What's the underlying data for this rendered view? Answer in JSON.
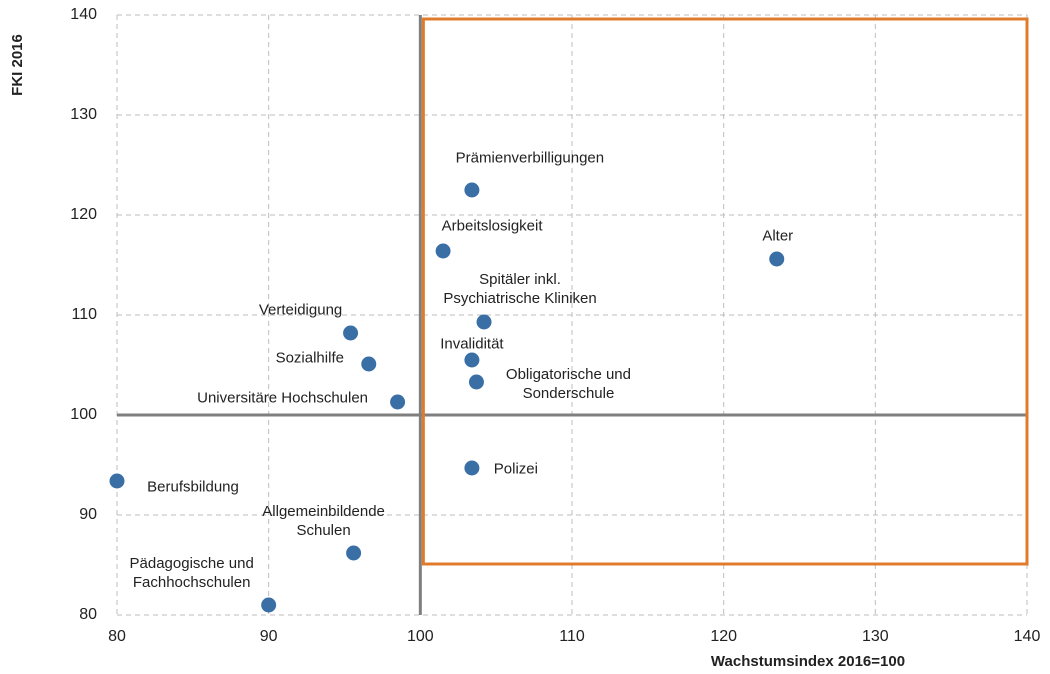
{
  "chart_data": {
    "type": "scatter",
    "x_label": "Wachstumsindex  2016=100",
    "y_label": "FKI 2016",
    "labels": [
      "Prämienverbilligungen",
      "Arbeitslosigkeit",
      "Alter",
      "Spitäler inkl.\nPsychiatrische Kliniken",
      "Verteidigung",
      "Sozialhilfe",
      "Invalidität",
      "Obligatorische und\nSonderschule",
      "Universitäre Hochschulen",
      "Polizei",
      "Berufsbildung",
      "Allgemeinbildende\nSchulen",
      "Pädagogische und\nFachhochschulen"
    ],
    "x": [
      103.4,
      101.5,
      123.5,
      104.2,
      95.4,
      96.6,
      103.4,
      103.7,
      98.5,
      103.4,
      80,
      95.6,
      90
    ],
    "values": [
      122.5,
      116.4,
      115.6,
      109.3,
      108.2,
      105.1,
      105.5,
      103.3,
      101.3,
      94.7,
      93.4,
      86.2,
      81.0
    ],
    "color": "#3a6fa5",
    "xlim": [
      80,
      140
    ],
    "ylim": [
      80,
      140
    ],
    "xticks": [
      80,
      90,
      100,
      110,
      120,
      130,
      140
    ],
    "yticks": [
      80,
      90,
      100,
      110,
      120,
      130,
      140
    ],
    "grid": true,
    "reference_lines": {
      "x": 100,
      "y": 100,
      "color": "#7f7f7f"
    },
    "highlight": {
      "xlim": [
        100.2,
        140
      ],
      "ylim": [
        85.1,
        139.6
      ],
      "color": "#e07b2c"
    }
  }
}
